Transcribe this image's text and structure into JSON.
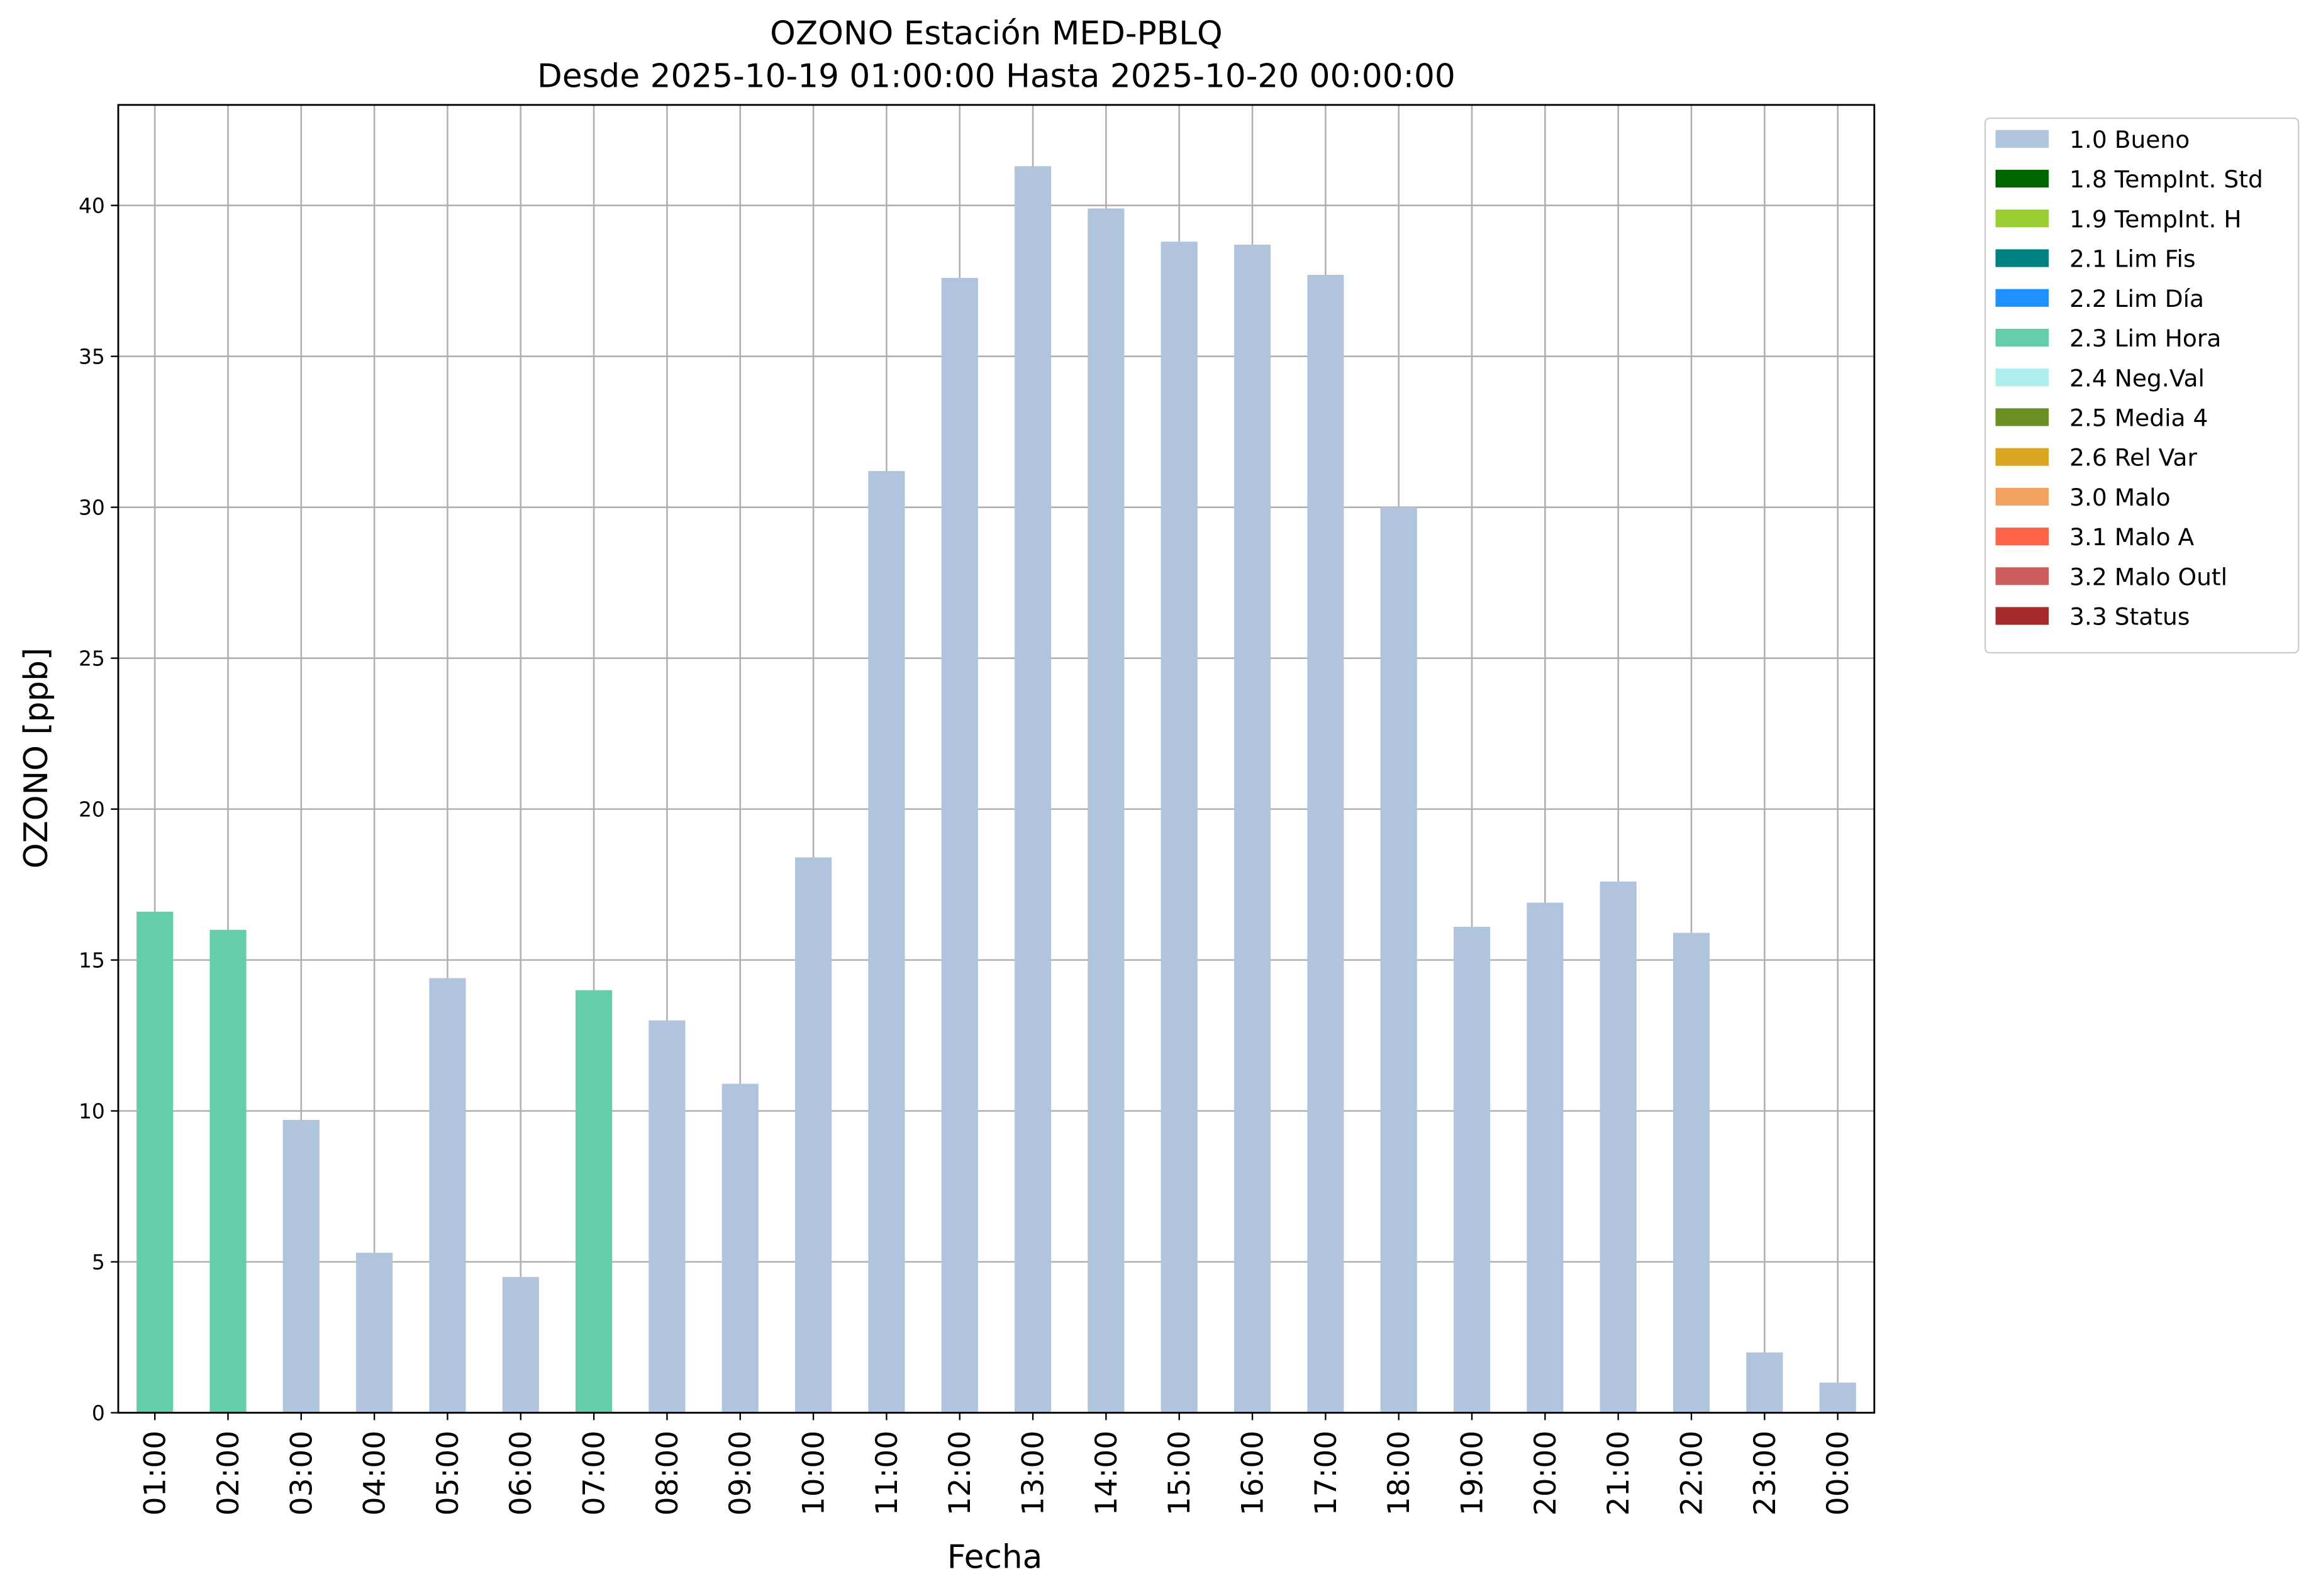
{
  "chart_data": {
    "type": "bar",
    "stacked": true,
    "title": "OZONO Estación MED-PBLQ",
    "subtitle": "Desde 2025-10-19 01:00:00 Hasta 2025-10-20 00:00:00",
    "xlabel": "Fecha",
    "ylabel": "OZONO [ppb]",
    "categories": [
      "01:00",
      "02:00",
      "03:00",
      "04:00",
      "05:00",
      "06:00",
      "07:00",
      "08:00",
      "09:00",
      "10:00",
      "11:00",
      "12:00",
      "13:00",
      "14:00",
      "15:00",
      "16:00",
      "17:00",
      "18:00",
      "19:00",
      "20:00",
      "21:00",
      "22:00",
      "23:00",
      "00:00"
    ],
    "series": [
      {
        "name": "1.0 Bueno",
        "color": "#b0c4de",
        "values": [
          null,
          null,
          9.7,
          5.3,
          14.4,
          4.5,
          null,
          13.0,
          10.9,
          18.4,
          31.2,
          37.6,
          41.3,
          39.9,
          38.8,
          38.7,
          37.7,
          30.0,
          16.1,
          16.9,
          17.6,
          15.9,
          2.0,
          1.0
        ]
      },
      {
        "name": "1.8 TempInt. Std",
        "color": "#006400",
        "values": [
          null,
          null,
          null,
          null,
          null,
          null,
          null,
          null,
          null,
          null,
          null,
          null,
          null,
          null,
          null,
          null,
          null,
          null,
          null,
          null,
          null,
          null,
          null,
          null
        ]
      },
      {
        "name": "1.9 TempInt. H",
        "color": "#9acd32",
        "values": [
          null,
          null,
          null,
          null,
          null,
          null,
          null,
          null,
          null,
          null,
          null,
          null,
          null,
          null,
          null,
          null,
          null,
          null,
          null,
          null,
          null,
          null,
          null,
          null
        ]
      },
      {
        "name": "2.1 Lim Fis",
        "color": "#008080",
        "values": [
          null,
          null,
          null,
          null,
          null,
          null,
          null,
          null,
          null,
          null,
          null,
          null,
          null,
          null,
          null,
          null,
          null,
          null,
          null,
          null,
          null,
          null,
          null,
          null
        ]
      },
      {
        "name": "2.2 Lim Día",
        "color": "#1e90ff",
        "values": [
          null,
          null,
          null,
          null,
          null,
          null,
          null,
          null,
          null,
          null,
          null,
          null,
          null,
          null,
          null,
          null,
          null,
          null,
          null,
          null,
          null,
          null,
          null,
          null
        ]
      },
      {
        "name": "2.3 Lim Hora",
        "color": "#66cdaa",
        "values": [
          16.6,
          16.0,
          null,
          null,
          null,
          null,
          14.0,
          null,
          null,
          null,
          null,
          null,
          null,
          null,
          null,
          null,
          null,
          null,
          null,
          null,
          null,
          null,
          null,
          null
        ]
      },
      {
        "name": "2.4 Neg.Val",
        "color": "#afeeee",
        "values": [
          null,
          null,
          null,
          null,
          null,
          null,
          null,
          null,
          null,
          null,
          null,
          null,
          null,
          null,
          null,
          null,
          null,
          null,
          null,
          null,
          null,
          null,
          null,
          null
        ]
      },
      {
        "name": "2.5 Media 4",
        "color": "#6b8e23",
        "values": [
          null,
          null,
          null,
          null,
          null,
          null,
          null,
          null,
          null,
          null,
          null,
          null,
          null,
          null,
          null,
          null,
          null,
          null,
          null,
          null,
          null,
          null,
          null,
          null
        ]
      },
      {
        "name": "2.6 Rel Var",
        "color": "#daa520",
        "values": [
          null,
          null,
          null,
          null,
          null,
          null,
          null,
          null,
          null,
          null,
          null,
          null,
          null,
          null,
          null,
          null,
          null,
          null,
          null,
          null,
          null,
          null,
          null,
          null
        ]
      },
      {
        "name": "3.0 Malo",
        "color": "#f4a460",
        "values": [
          null,
          null,
          null,
          null,
          null,
          null,
          null,
          null,
          null,
          null,
          null,
          null,
          null,
          null,
          null,
          null,
          null,
          null,
          null,
          null,
          null,
          null,
          null,
          null
        ]
      },
      {
        "name": "3.1 Malo A",
        "color": "#ff6347",
        "values": [
          null,
          null,
          null,
          null,
          null,
          null,
          null,
          null,
          null,
          null,
          null,
          null,
          null,
          null,
          null,
          null,
          null,
          null,
          null,
          null,
          null,
          null,
          null,
          null
        ]
      },
      {
        "name": "3.2 Malo Outl",
        "color": "#cd5c5c",
        "values": [
          null,
          null,
          null,
          null,
          null,
          null,
          null,
          null,
          null,
          null,
          null,
          null,
          null,
          null,
          null,
          null,
          null,
          null,
          null,
          null,
          null,
          null,
          null,
          null
        ]
      },
      {
        "name": "3.3 Status",
        "color": "#a52a2a",
        "values": [
          null,
          null,
          null,
          null,
          null,
          null,
          null,
          null,
          null,
          null,
          null,
          null,
          null,
          null,
          null,
          null,
          null,
          null,
          null,
          null,
          null,
          null,
          null,
          null
        ]
      }
    ],
    "ylim": [
      0,
      43.33
    ],
    "yticks": [
      0,
      5,
      10,
      15,
      20,
      25,
      30,
      35,
      40
    ],
    "grid": true,
    "legend": "outside-right"
  }
}
